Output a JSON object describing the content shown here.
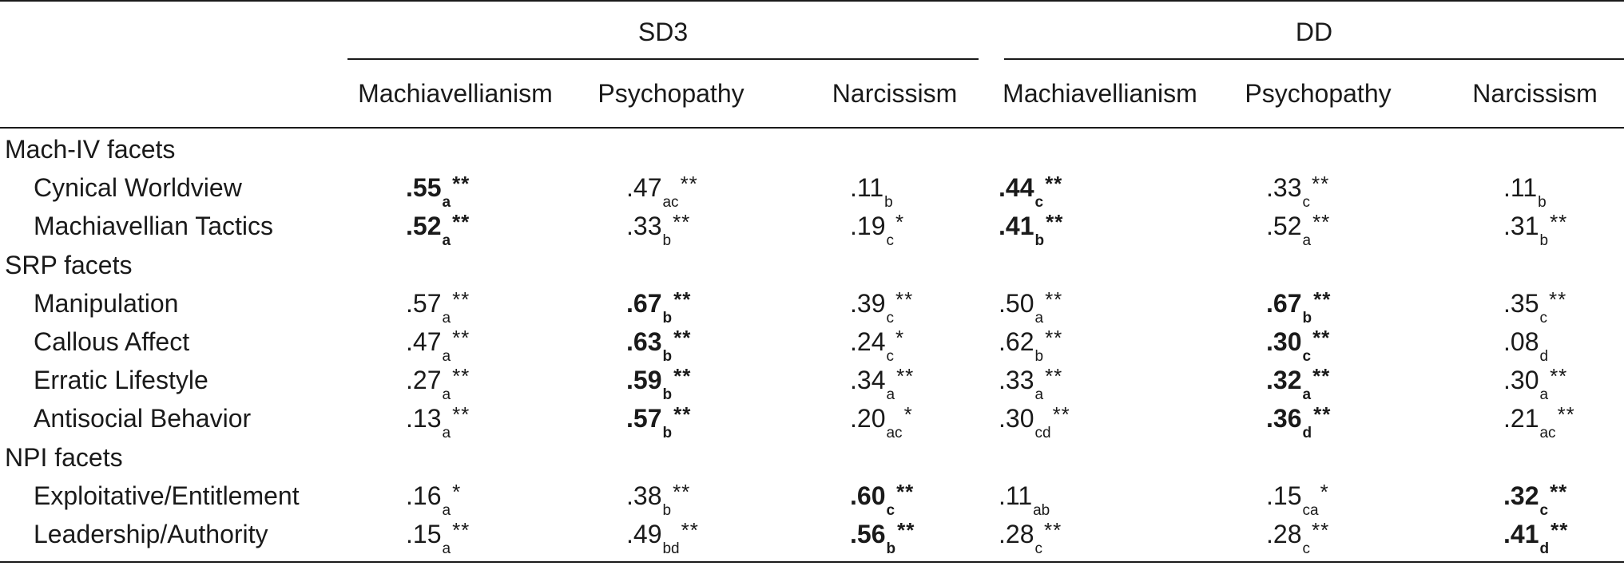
{
  "groups": [
    "SD3",
    "DD"
  ],
  "columns": [
    "Machiavellianism",
    "Psychopathy",
    "Narcissism",
    "Machiavellianism",
    "Psychopathy",
    "Narcissism"
  ],
  "sections": [
    {
      "label": "Mach-IV facets",
      "rows": [
        {
          "label": "Cynical Worldview",
          "cells": [
            {
              "v": ".55",
              "s": "a",
              "sig": "**",
              "b": true
            },
            {
              "v": ".47",
              "s": "ac",
              "sig": "**",
              "b": false
            },
            {
              "v": ".11",
              "s": "b",
              "sig": "",
              "b": false
            },
            {
              "v": ".44",
              "s": "c",
              "sig": "**",
              "b": true
            },
            {
              "v": ".33",
              "s": "c",
              "sig": "**",
              "b": false
            },
            {
              "v": ".11",
              "s": "b",
              "sig": "",
              "b": false
            }
          ]
        },
        {
          "label": "Machiavellian Tactics",
          "cells": [
            {
              "v": ".52",
              "s": "a",
              "sig": "**",
              "b": true
            },
            {
              "v": ".33",
              "s": "b",
              "sig": "**",
              "b": false
            },
            {
              "v": ".19",
              "s": "c",
              "sig": "*",
              "b": false
            },
            {
              "v": ".41",
              "s": "b",
              "sig": "**",
              "b": true
            },
            {
              "v": ".52",
              "s": "a",
              "sig": "**",
              "b": false
            },
            {
              "v": ".31",
              "s": "b",
              "sig": "**",
              "b": false
            }
          ]
        }
      ]
    },
    {
      "label": "SRP facets",
      "rows": [
        {
          "label": "Manipulation",
          "cells": [
            {
              "v": ".57",
              "s": "a",
              "sig": "**",
              "b": false
            },
            {
              "v": ".67",
              "s": "b",
              "sig": "**",
              "b": true
            },
            {
              "v": ".39",
              "s": "c",
              "sig": "**",
              "b": false
            },
            {
              "v": ".50",
              "s": "a",
              "sig": "**",
              "b": false
            },
            {
              "v": ".67",
              "s": "b",
              "sig": "**",
              "b": true
            },
            {
              "v": ".35",
              "s": "c",
              "sig": "**",
              "b": false
            }
          ]
        },
        {
          "label": "Callous Affect",
          "cells": [
            {
              "v": ".47",
              "s": "a",
              "sig": "**",
              "b": false
            },
            {
              "v": ".63",
              "s": "b",
              "sig": "**",
              "b": true
            },
            {
              "v": ".24",
              "s": "c",
              "sig": "*",
              "b": false
            },
            {
              "v": ".62",
              "s": "b",
              "sig": "**",
              "b": false
            },
            {
              "v": ".30",
              "s": "c",
              "sig": "**",
              "b": true
            },
            {
              "v": ".08",
              "s": "d",
              "sig": "",
              "b": false
            }
          ]
        },
        {
          "label": "Erratic Lifestyle",
          "cells": [
            {
              "v": ".27",
              "s": "a",
              "sig": "**",
              "b": false
            },
            {
              "v": ".59",
              "s": "b",
              "sig": "**",
              "b": true
            },
            {
              "v": ".34",
              "s": "a",
              "sig": "**",
              "b": false
            },
            {
              "v": ".33",
              "s": "a",
              "sig": "**",
              "b": false
            },
            {
              "v": ".32",
              "s": "a",
              "sig": "**",
              "b": true
            },
            {
              "v": ".30",
              "s": "a",
              "sig": "**",
              "b": false
            }
          ]
        },
        {
          "label": "Antisocial Behavior",
          "cells": [
            {
              "v": ".13",
              "s": "a",
              "sig": "**",
              "b": false
            },
            {
              "v": ".57",
              "s": "b",
              "sig": "**",
              "b": true
            },
            {
              "v": ".20",
              "s": "ac",
              "sig": "*",
              "b": false
            },
            {
              "v": ".30",
              "s": "cd",
              "sig": "**",
              "b": false
            },
            {
              "v": ".36",
              "s": "d",
              "sig": "**",
              "b": true
            },
            {
              "v": ".21",
              "s": "ac",
              "sig": "**",
              "b": false
            }
          ]
        }
      ]
    },
    {
      "label": "NPI facets",
      "rows": [
        {
          "label": "Exploitative/Entitlement",
          "cells": [
            {
              "v": ".16",
              "s": "a",
              "sig": "*",
              "b": false
            },
            {
              "v": ".38",
              "s": "b",
              "sig": "**",
              "b": false
            },
            {
              "v": ".60",
              "s": "c",
              "sig": "**",
              "b": true
            },
            {
              "v": ".11",
              "s": "ab",
              "sig": "",
              "b": false
            },
            {
              "v": ".15",
              "s": "ca",
              "sig": "*",
              "b": false
            },
            {
              "v": ".32",
              "s": "c",
              "sig": "**",
              "b": true
            }
          ]
        },
        {
          "label": "Leadership/Authority",
          "cells": [
            {
              "v": ".15",
              "s": "a",
              "sig": "**",
              "b": false
            },
            {
              "v": ".49",
              "s": "bd",
              "sig": "**",
              "b": false
            },
            {
              "v": ".56",
              "s": "b",
              "sig": "**",
              "b": true
            },
            {
              "v": ".28",
              "s": "c",
              "sig": "**",
              "b": false
            },
            {
              "v": ".28",
              "s": "c",
              "sig": "**",
              "b": false
            },
            {
              "v": ".41",
              "s": "d",
              "sig": "**",
              "b": true
            }
          ]
        }
      ]
    }
  ]
}
